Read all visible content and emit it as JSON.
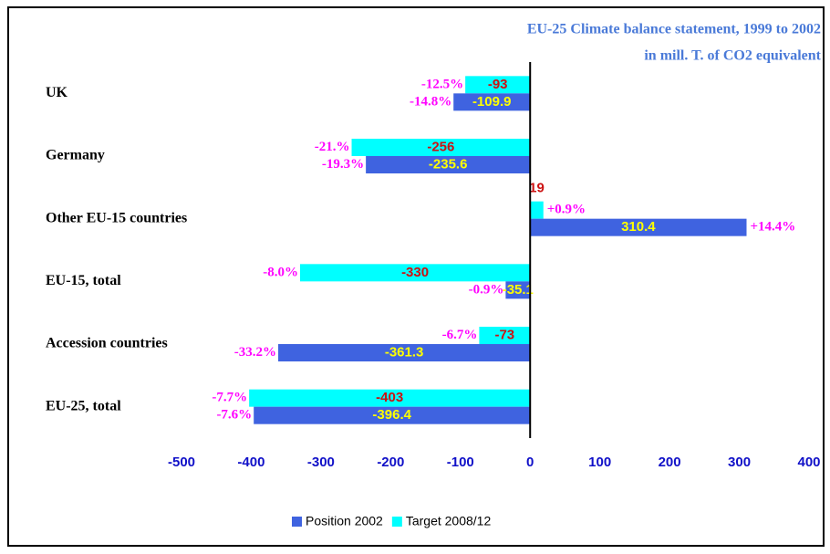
{
  "chart_data": {
    "type": "hbar",
    "title": "EU-25 Climate balance statement, 1999 to 2002",
    "subtitle": "in mill. T. of CO2 equivalent",
    "categories": [
      "UK",
      "Germany",
      "Other EU-15 countries",
      "EU-15, total",
      "Accession countries",
      "EU-25, total"
    ],
    "series": [
      {
        "name": "Position 2002",
        "color": "#3f63e0",
        "label_color": "#ffff00",
        "values": [
          -109.9,
          -235.6,
          310.4,
          -35.1,
          -361.3,
          -396.4
        ],
        "percent_labels": [
          "-14.8%",
          "-19.3%",
          "+14.4%",
          "-0.9%",
          "-33.2%",
          "-7.6%"
        ]
      },
      {
        "name": "Target 2008/12",
        "color": "#00ffff",
        "label_color": "#cc1111",
        "values": [
          -93,
          -256,
          19,
          -330,
          -73,
          -403
        ],
        "percent_labels": [
          "-12.5%",
          "-21.%",
          "+0.9%",
          "-8.0%",
          "-6.7%",
          "-7.7%"
        ]
      }
    ],
    "xlim": [
      -500,
      400
    ],
    "xticks": [
      -500,
      -400,
      -300,
      -200,
      -100,
      0,
      100,
      200,
      300,
      400
    ],
    "legend": "bottom"
  }
}
